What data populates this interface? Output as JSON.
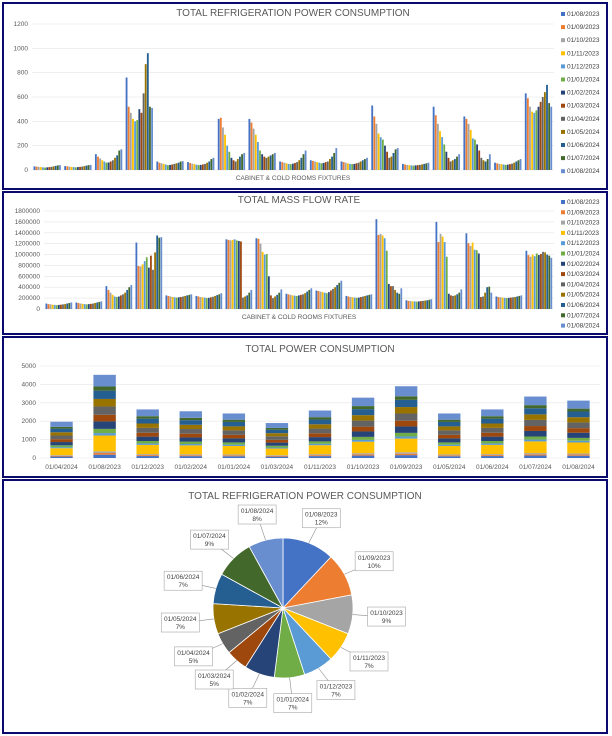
{
  "colors": [
    "#4472C4",
    "#ED7D31",
    "#A5A5A5",
    "#FFC000",
    "#5B9BD5",
    "#70AD47",
    "#264478",
    "#9E480E",
    "#636363",
    "#997300",
    "#255E91",
    "#43682B",
    "#698ED0"
  ],
  "chart_data": [
    {
      "type": "bar",
      "title": "TOTAL REFRIGERATION POWER CONSUMPTION",
      "xlabel": "CABINET &  COLD ROOMS FIXTURES",
      "ylabel": "",
      "ylim": [
        0,
        1200
      ],
      "yticks": [
        "0",
        "200",
        "400",
        "600",
        "800",
        "1000",
        "1200"
      ],
      "legend_position": "right",
      "series_names": [
        "01/08/2023",
        "01/09/2023",
        "01/10/2023",
        "01/11/2023",
        "01/12/2023",
        "01/01/2024",
        "01/02/2024",
        "01/03/2024",
        "01/04/2024",
        "01/05/2024",
        "01/06/2024",
        "01/07/2024",
        "01/08/2024"
      ],
      "fixtures": [
        [
          30,
          28,
          26,
          24,
          22,
          20,
          22,
          24,
          26,
          30,
          34,
          38,
          40
        ],
        [
          32,
          30,
          28,
          26,
          24,
          22,
          24,
          26,
          28,
          32,
          36,
          40,
          42
        ],
        [
          130,
          110,
          95,
          80,
          70,
          60,
          62,
          70,
          80,
          100,
          120,
          160,
          170
        ],
        [
          760,
          520,
          470,
          420,
          400,
          410,
          500,
          470,
          630,
          870,
          960,
          520,
          510
        ],
        [
          70,
          60,
          55,
          50,
          45,
          40,
          42,
          45,
          50,
          55,
          60,
          70,
          72
        ],
        [
          65,
          58,
          52,
          48,
          44,
          40,
          42,
          46,
          50,
          60,
          70,
          90,
          100
        ],
        [
          420,
          430,
          350,
          290,
          200,
          150,
          100,
          80,
          70,
          90,
          110,
          130,
          140
        ],
        [
          420,
          390,
          340,
          290,
          230,
          160,
          130,
          110,
          100,
          110,
          120,
          130,
          140
        ],
        [
          70,
          65,
          60,
          55,
          50,
          48,
          52,
          58,
          65,
          80,
          100,
          130,
          160
        ],
        [
          80,
          75,
          70,
          65,
          60,
          55,
          58,
          65,
          70,
          90,
          110,
          140,
          180
        ],
        [
          70,
          65,
          60,
          55,
          50,
          48,
          50,
          55,
          60,
          70,
          80,
          90,
          100
        ],
        [
          530,
          440,
          380,
          300,
          270,
          250,
          200,
          150,
          100,
          110,
          140,
          170,
          180
        ],
        [
          50,
          45,
          42,
          40,
          38,
          36,
          38,
          40,
          42,
          46,
          50,
          55,
          60
        ],
        [
          520,
          450,
          380,
          320,
          270,
          210,
          150,
          100,
          70,
          80,
          90,
          110,
          130
        ],
        [
          440,
          420,
          380,
          330,
          260,
          250,
          210,
          160,
          100,
          80,
          70,
          90,
          130
        ],
        [
          60,
          55,
          50,
          48,
          45,
          42,
          44,
          48,
          52,
          60,
          70,
          80,
          90
        ],
        [
          630,
          590,
          520,
          480,
          470,
          490,
          520,
          560,
          600,
          640,
          700,
          550,
          520
        ]
      ]
    },
    {
      "type": "bar",
      "title": "TOTAL MASS FLOW RATE",
      "xlabel": "CABINET &  COLD ROOMS FIXTURES",
      "ylabel": "",
      "ylim": [
        0,
        1800000
      ],
      "yticks": [
        "0",
        "200000",
        "400000",
        "600000",
        "800000",
        "1000000",
        "1200000",
        "1400000",
        "1600000",
        "1800000"
      ],
      "legend_position": "right",
      "series_names": [
        "01/08/2023",
        "01/09/2023",
        "01/10/2023",
        "01/11/2023",
        "01/12/2023",
        "01/01/2024",
        "01/02/2024",
        "01/03/2024",
        "01/04/2024",
        "01/05/2024",
        "01/06/2024",
        "01/07/2024",
        "01/08/2024"
      ],
      "fixtures": [
        [
          100000,
          90000,
          85000,
          80000,
          75000,
          70000,
          75000,
          80000,
          85000,
          90000,
          100000,
          110000,
          120000
        ],
        [
          120000,
          110000,
          100000,
          95000,
          90000,
          85000,
          90000,
          95000,
          100000,
          110000,
          120000,
          130000,
          140000
        ],
        [
          420000,
          350000,
          300000,
          260000,
          230000,
          220000,
          230000,
          250000,
          270000,
          300000,
          350000,
          400000,
          440000
        ],
        [
          1220000,
          790000,
          780000,
          820000,
          880000,
          950000,
          760000,
          980000,
          720000,
          1040000,
          1350000,
          1310000,
          1320000
        ],
        [
          250000,
          240000,
          230000,
          220000,
          215000,
          210000,
          215000,
          220000,
          230000,
          240000,
          250000,
          260000,
          270000
        ],
        [
          240000,
          230000,
          220000,
          215000,
          210000,
          200000,
          205000,
          215000,
          225000,
          240000,
          255000,
          270000,
          290000
        ],
        [
          1280000,
          1270000,
          1260000,
          1270000,
          1280000,
          1260000,
          1250000,
          1240000,
          210000,
          230000,
          250000,
          300000,
          350000
        ],
        [
          1300000,
          1290000,
          1200000,
          1050000,
          1000000,
          1010000,
          600000,
          250000,
          200000,
          230000,
          260000,
          300000,
          360000
        ],
        [
          280000,
          270000,
          260000,
          250000,
          245000,
          240000,
          250000,
          260000,
          270000,
          290000,
          320000,
          350000,
          380000
        ],
        [
          340000,
          330000,
          320000,
          310000,
          300000,
          290000,
          310000,
          340000,
          370000,
          400000,
          440000,
          480000,
          520000
        ],
        [
          240000,
          230000,
          220000,
          215000,
          210000,
          205000,
          210000,
          220000,
          230000,
          240000,
          250000,
          260000,
          270000
        ],
        [
          1650000,
          1360000,
          1380000,
          1350000,
          1300000,
          1070000,
          460000,
          420000,
          420000,
          350000,
          300000,
          280000,
          380000
        ],
        [
          160000,
          150000,
          145000,
          140000,
          140000,
          135000,
          140000,
          145000,
          150000,
          155000,
          160000,
          170000,
          180000
        ],
        [
          1600000,
          1230000,
          1380000,
          1330000,
          1230000,
          960000,
          280000,
          250000,
          240000,
          250000,
          270000,
          300000,
          360000
        ],
        [
          1390000,
          1210000,
          1160000,
          1220000,
          1090000,
          1080000,
          1020000,
          220000,
          230000,
          300000,
          400000,
          410000,
          300000
        ],
        [
          230000,
          220000,
          215000,
          210000,
          205000,
          200000,
          205000,
          210000,
          215000,
          220000,
          230000,
          240000,
          250000
        ],
        [
          1070000,
          990000,
          960000,
          1000000,
          970000,
          1020000,
          990000,
          1010000,
          1050000,
          1040000,
          1000000,
          980000,
          940000
        ]
      ]
    },
    {
      "type": "bar",
      "stacked": true,
      "title": "TOTAL POWER CONSUMPTION",
      "ylim": [
        0,
        5000
      ],
      "yticks": [
        "0",
        "1000",
        "2000",
        "3000",
        "4000",
        "5000"
      ],
      "categories": [
        "01/04/2024",
        "01/08/2023",
        "01/12/2023",
        "01/02/2024",
        "01/01/2024",
        "01/03/2024",
        "01/11/2023",
        "01/10/2023",
        "01/09/2023",
        "01/05/2024",
        "01/06/2024",
        "01/07/2024",
        "01/08/2024"
      ],
      "totals": [
        1970,
        4520,
        2640,
        2540,
        2420,
        1900,
        2580,
        3280,
        3900,
        2420,
        2640,
        3340,
        3120
      ]
    },
    {
      "type": "pie",
      "title": "TOTAL REFRIGERATION POWER CONSUMPTION",
      "slices": [
        {
          "label": "01/08/2023",
          "pct": "12%",
          "value": 12
        },
        {
          "label": "01/09/2023",
          "pct": "10%",
          "value": 10
        },
        {
          "label": "01/10/2023",
          "pct": "9%",
          "value": 9
        },
        {
          "label": "01/11/2023",
          "pct": "7%",
          "value": 7
        },
        {
          "label": "01/12/2023",
          "pct": "7%",
          "value": 7
        },
        {
          "label": "01/01/2024",
          "pct": "7%",
          "value": 7
        },
        {
          "label": "01/02/2024",
          "pct": "7%",
          "value": 7
        },
        {
          "label": "01/03/2024",
          "pct": "5%",
          "value": 5
        },
        {
          "label": "01/04/2024",
          "pct": "5%",
          "value": 5
        },
        {
          "label": "01/05/2024",
          "pct": "7%",
          "value": 7
        },
        {
          "label": "01/06/2024",
          "pct": "7%",
          "value": 7
        },
        {
          "label": "01/07/2024",
          "pct": "9%",
          "value": 9
        },
        {
          "label": "01/08/2024",
          "pct": "8%",
          "value": 8
        }
      ]
    }
  ]
}
